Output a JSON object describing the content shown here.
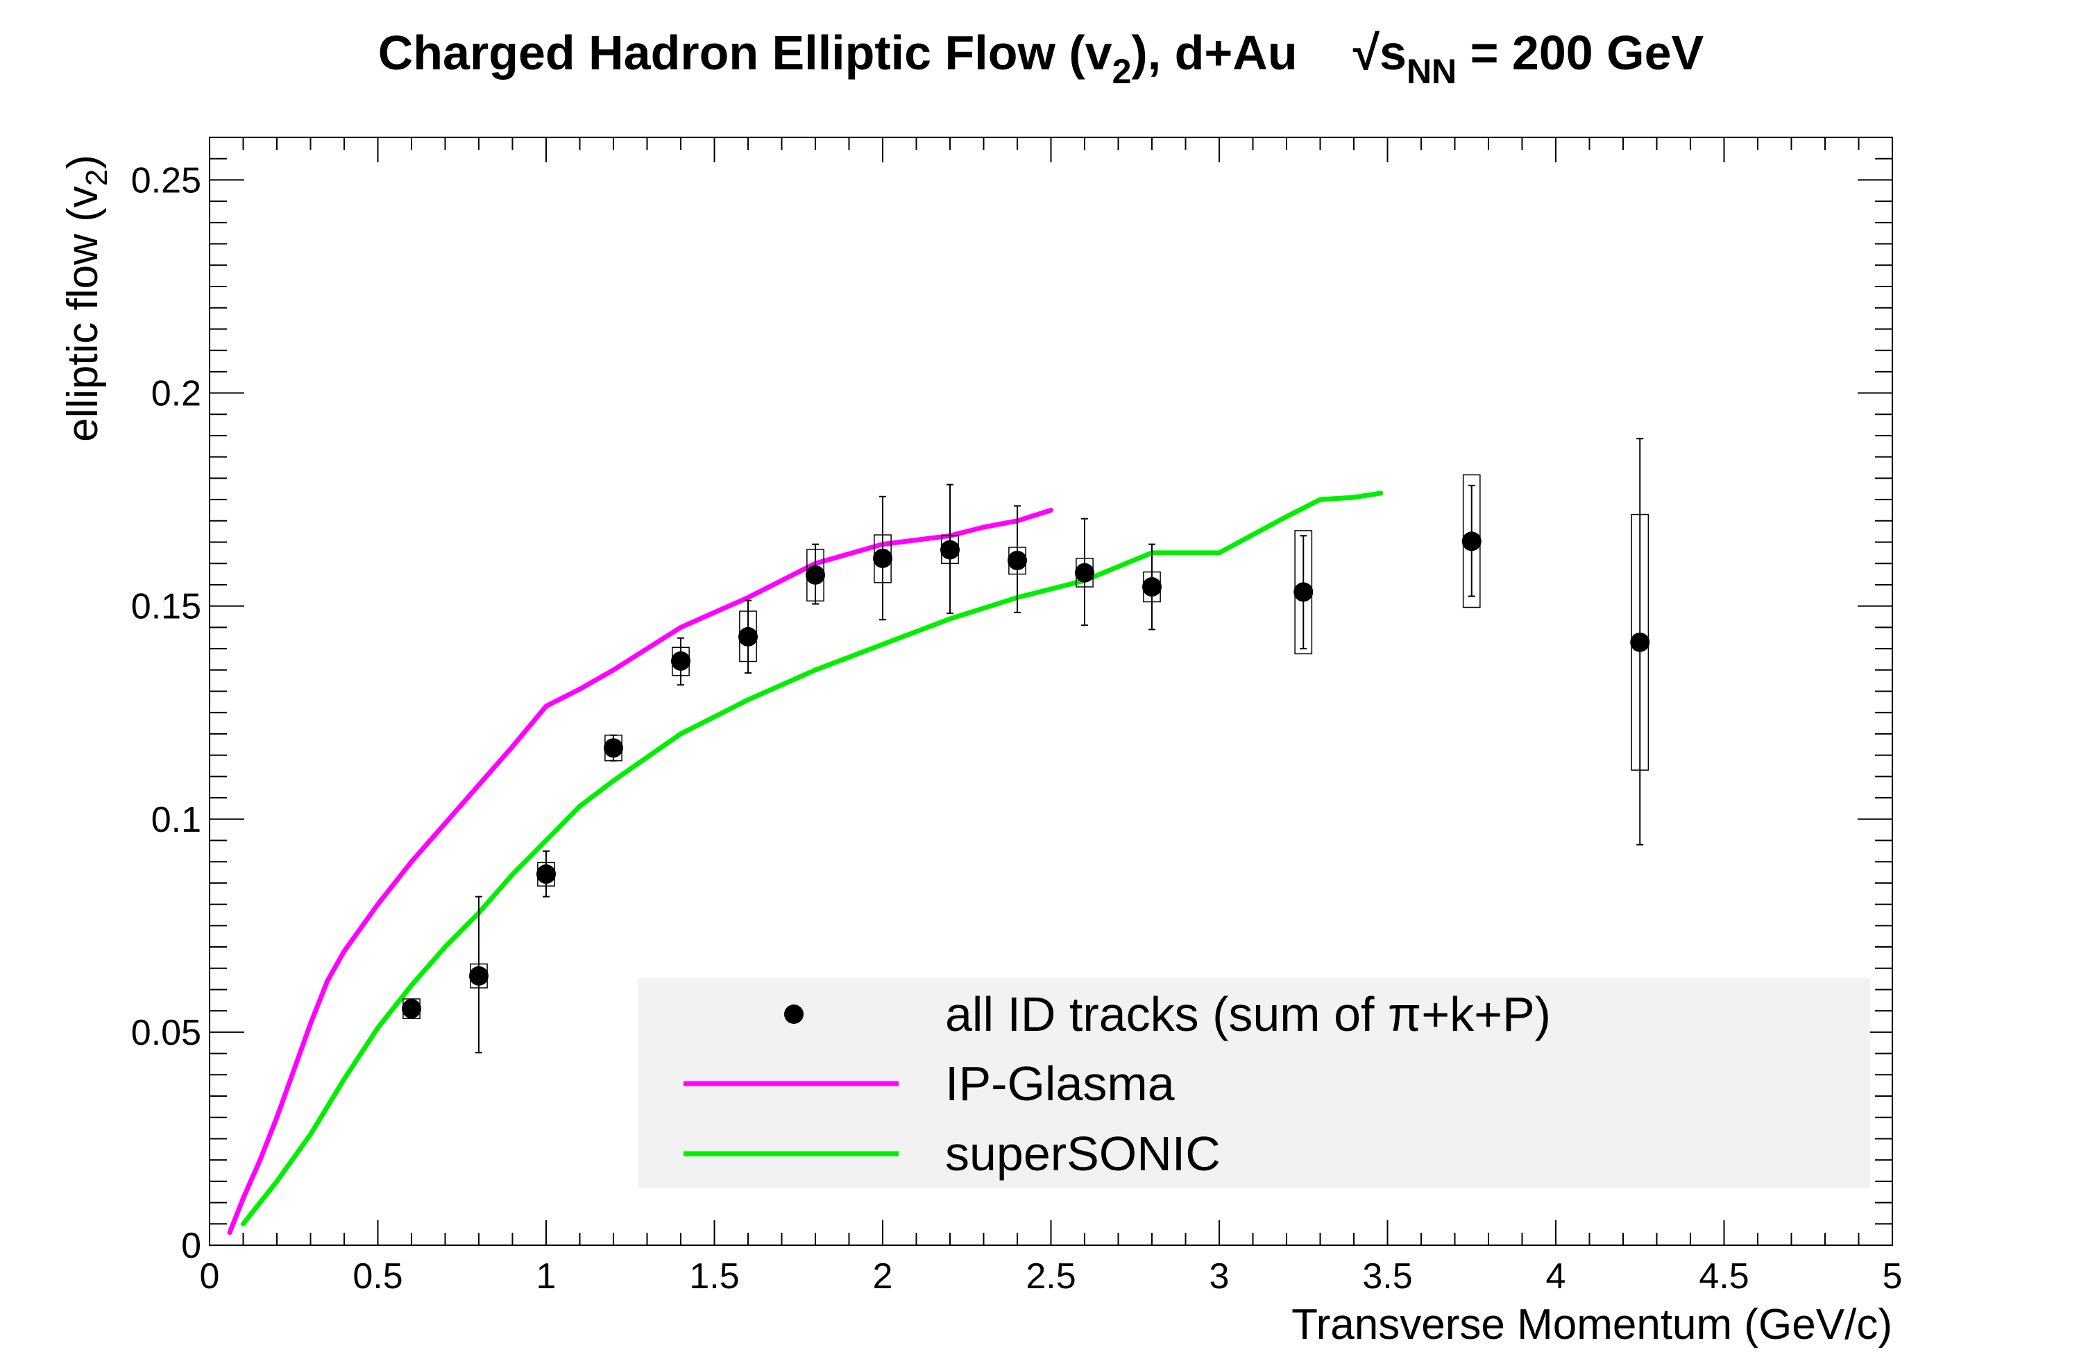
{
  "chart_data": {
    "type": "scatter",
    "title": {
      "main": "Charged Hadron Elliptic Flow (v",
      "sub": "2",
      "after": "), d+Au",
      "energy_prefix": "√s",
      "energy_sub": "NN",
      "energy_value": " = 200 GeV"
    },
    "xlabel": "Transverse Momentum (GeV/c)",
    "ylabel": {
      "text": "elliptic flow (v",
      "sub": "2",
      "close": ")"
    },
    "xlim": [
      0,
      5
    ],
    "ylim": [
      0,
      0.26
    ],
    "x_ticks": [
      "0",
      "0.5",
      "1",
      "1.5",
      "2",
      "2.5",
      "3",
      "3.5",
      "4",
      "4.5",
      "5"
    ],
    "y_ticks": [
      "0",
      "0.05",
      "0.1",
      "0.15",
      "0.2",
      "0.25"
    ],
    "legend": {
      "position": "bottom-right",
      "background": "#f2f2f2",
      "entries": [
        "all ID tracks (sum of π+k+P)",
        "IP-Glasma",
        "superSONIC"
      ]
    },
    "series": [
      {
        "name": "all ID tracks (sum of π+k+P)",
        "kind": "points",
        "color": "#000000",
        "points": [
          {
            "x": 0.6,
            "y": 0.0555,
            "stat_lo": 0.054,
            "stat_hi": 0.057,
            "sys_lo": 0.0532,
            "sys_hi": 0.0578,
            "sys_halfwidth": 0.025
          },
          {
            "x": 0.8,
            "y": 0.0632,
            "stat_lo": 0.0452,
            "stat_hi": 0.0818,
            "sys_lo": 0.0604,
            "sys_hi": 0.066,
            "sys_halfwidth": 0.025
          },
          {
            "x": 1.0,
            "y": 0.0871,
            "stat_lo": 0.0818,
            "stat_hi": 0.0925,
            "sys_lo": 0.0843,
            "sys_hi": 0.0898,
            "sys_halfwidth": 0.025
          },
          {
            "x": 1.2,
            "y": 0.1167,
            "stat_lo": 0.1137,
            "stat_hi": 0.1197,
            "sys_lo": 0.1137,
            "sys_hi": 0.1197,
            "sys_halfwidth": 0.025
          },
          {
            "x": 1.4,
            "y": 0.1371,
            "stat_lo": 0.1315,
            "stat_hi": 0.1425,
            "sys_lo": 0.1337,
            "sys_hi": 0.1403,
            "sys_halfwidth": 0.025
          },
          {
            "x": 1.6,
            "y": 0.1428,
            "stat_lo": 0.1343,
            "stat_hi": 0.1513,
            "sys_lo": 0.137,
            "sys_hi": 0.1488,
            "sys_halfwidth": 0.025
          },
          {
            "x": 1.8,
            "y": 0.1573,
            "stat_lo": 0.1505,
            "stat_hi": 0.1645,
            "sys_lo": 0.1512,
            "sys_hi": 0.1633,
            "sys_halfwidth": 0.025
          },
          {
            "x": 2.0,
            "y": 0.1612,
            "stat_lo": 0.1468,
            "stat_hi": 0.1757,
            "sys_lo": 0.1555,
            "sys_hi": 0.1667,
            "sys_halfwidth": 0.025
          },
          {
            "x": 2.2,
            "y": 0.1632,
            "stat_lo": 0.1483,
            "stat_hi": 0.1785,
            "sys_lo": 0.16,
            "sys_hi": 0.1665,
            "sys_halfwidth": 0.025
          },
          {
            "x": 2.4,
            "y": 0.1607,
            "stat_lo": 0.1485,
            "stat_hi": 0.1735,
            "sys_lo": 0.1575,
            "sys_hi": 0.1638,
            "sys_halfwidth": 0.025
          },
          {
            "x": 2.6,
            "y": 0.1578,
            "stat_lo": 0.1455,
            "stat_hi": 0.1705,
            "sys_lo": 0.1545,
            "sys_hi": 0.1612,
            "sys_halfwidth": 0.025
          },
          {
            "x": 2.8,
            "y": 0.1545,
            "stat_lo": 0.1445,
            "stat_hi": 0.1645,
            "sys_lo": 0.151,
            "sys_hi": 0.158,
            "sys_halfwidth": 0.025
          },
          {
            "x": 3.25,
            "y": 0.1533,
            "stat_lo": 0.14,
            "stat_hi": 0.1665,
            "sys_lo": 0.1388,
            "sys_hi": 0.1677,
            "sys_halfwidth": 0.025
          },
          {
            "x": 3.75,
            "y": 0.1652,
            "stat_lo": 0.1523,
            "stat_hi": 0.1783,
            "sys_lo": 0.1497,
            "sys_hi": 0.1808,
            "sys_halfwidth": 0.025
          },
          {
            "x": 4.25,
            "y": 0.1415,
            "stat_lo": 0.094,
            "stat_hi": 0.1893,
            "sys_lo": 0.1115,
            "sys_hi": 0.1715,
            "sys_halfwidth": 0.025
          }
        ]
      },
      {
        "name": "IP-Glasma",
        "kind": "line",
        "color": "#ff00ff",
        "x": [
          0.06,
          0.1,
          0.15,
          0.2,
          0.25,
          0.3,
          0.35,
          0.4,
          0.5,
          0.6,
          0.7,
          0.8,
          0.9,
          1.0,
          1.1,
          1.2,
          1.4,
          1.6,
          1.8,
          2.0,
          2.2,
          2.3,
          2.4,
          2.5
        ],
        "y": [
          0.003,
          0.011,
          0.02,
          0.03,
          0.041,
          0.052,
          0.062,
          0.069,
          0.08,
          0.09,
          0.099,
          0.108,
          0.117,
          0.1265,
          0.1305,
          0.135,
          0.145,
          0.152,
          0.16,
          0.1645,
          0.1665,
          0.1685,
          0.17,
          0.1725
        ]
      },
      {
        "name": "superSONIC",
        "kind": "line",
        "color": "#00ee00",
        "x": [
          0.1,
          0.15,
          0.2,
          0.3,
          0.4,
          0.5,
          0.6,
          0.7,
          0.8,
          0.9,
          1.0,
          1.1,
          1.2,
          1.4,
          1.6,
          1.8,
          2.0,
          2.2,
          2.4,
          2.6,
          2.8,
          3.0,
          3.2,
          3.3,
          3.4,
          3.48
        ],
        "y": [
          0.005,
          0.01,
          0.015,
          0.026,
          0.039,
          0.051,
          0.061,
          0.07,
          0.078,
          0.087,
          0.095,
          0.103,
          0.109,
          0.12,
          0.128,
          0.135,
          0.141,
          0.147,
          0.152,
          0.156,
          0.1625,
          0.1625,
          0.171,
          0.175,
          0.1755,
          0.1765
        ]
      }
    ]
  }
}
